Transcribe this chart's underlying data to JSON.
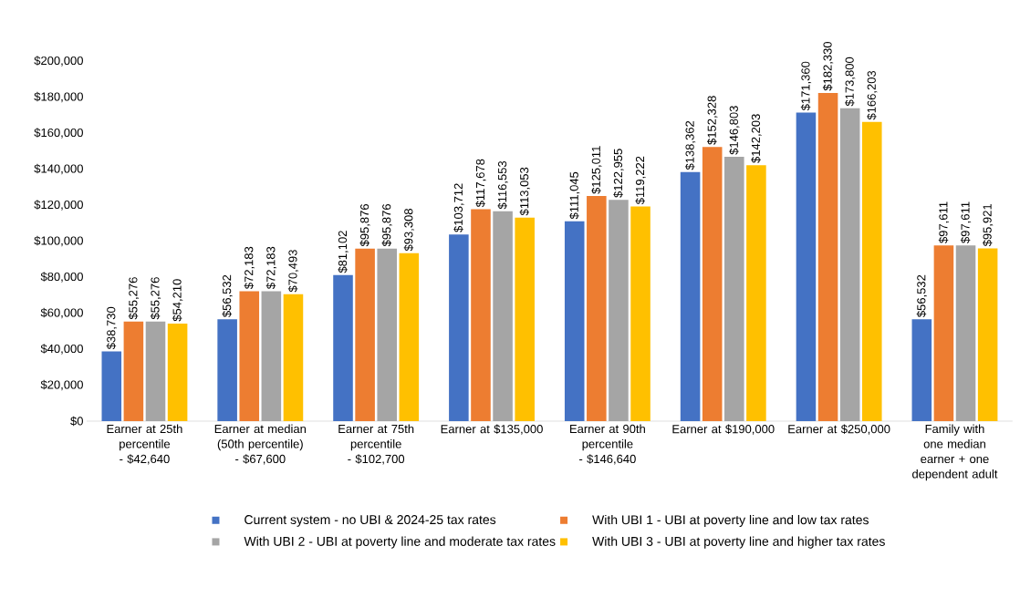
{
  "chart_data": {
    "type": "bar",
    "categories": [
      "Earner at 25th percentile - $42,640",
      "Earner at median (50th percentile) - $67,600",
      "Earner at 75th percentile - $102,700",
      "Earner at $135,000",
      "Earner at 90th percentile - $146,640",
      "Earner at $190,000",
      "Earner at $250,000",
      "Family with one median earner + one dependent adult"
    ],
    "series": [
      {
        "name": "Current system - no UBI & 2024-25 tax rates",
        "color": "#4472c4",
        "values": [
          38730,
          56532,
          81102,
          103712,
          111045,
          138362,
          171360,
          56532
        ],
        "value_labels": [
          "$38,730",
          "$56,532",
          "$81,102",
          "$103,712",
          "$111,045",
          "$138,362",
          "$171,360",
          "$56,532"
        ]
      },
      {
        "name": "With UBI 1 - UBI at poverty line and low tax rates",
        "color": "#ed7d31",
        "values": [
          55276,
          72183,
          95876,
          117678,
          125011,
          152328,
          182330,
          97611
        ],
        "value_labels": [
          "$55,276",
          "$72,183",
          "$95,876",
          "$117,678",
          "$125,011",
          "$152,328",
          "$182,330",
          "$97,611"
        ]
      },
      {
        "name": "With UBI 2 - UBI at poverty line and moderate tax rates",
        "color": "#a5a5a5",
        "values": [
          55276,
          72183,
          95876,
          116553,
          122955,
          146803,
          173800,
          97611
        ],
        "value_labels": [
          "$55,276",
          "$72,183",
          "$95,876",
          "$116,553",
          "$122,955",
          "$146,803",
          "$173,800",
          "$97,611"
        ]
      },
      {
        "name": "With UBI 3 - UBI at poverty line and higher tax rates",
        "color": "#ffc000",
        "values": [
          54210,
          70493,
          93308,
          113053,
          119222,
          142203,
          166203,
          95921
        ],
        "value_labels": [
          "$54,210",
          "$70,493",
          "$93,308",
          "$113,053",
          "$119,222",
          "$142,203",
          "$166,203",
          "$95,921"
        ]
      }
    ],
    "ylim": [
      0,
      200000
    ],
    "yticks": [
      {
        "value": 0,
        "label": "$0"
      },
      {
        "value": 20000,
        "label": "$20,000"
      },
      {
        "value": 40000,
        "label": "$40,000"
      },
      {
        "value": 60000,
        "label": "$60,000"
      },
      {
        "value": 80000,
        "label": "$80,000"
      },
      {
        "value": 100000,
        "label": "$100,000"
      },
      {
        "value": 120000,
        "label": "$120,000"
      },
      {
        "value": 140000,
        "label": "$140,000"
      },
      {
        "value": 160000,
        "label": "$160,000"
      },
      {
        "value": 180000,
        "label": "$180,000"
      },
      {
        "value": 200000,
        "label": "$200,000"
      }
    ],
    "legend": "bottom"
  }
}
